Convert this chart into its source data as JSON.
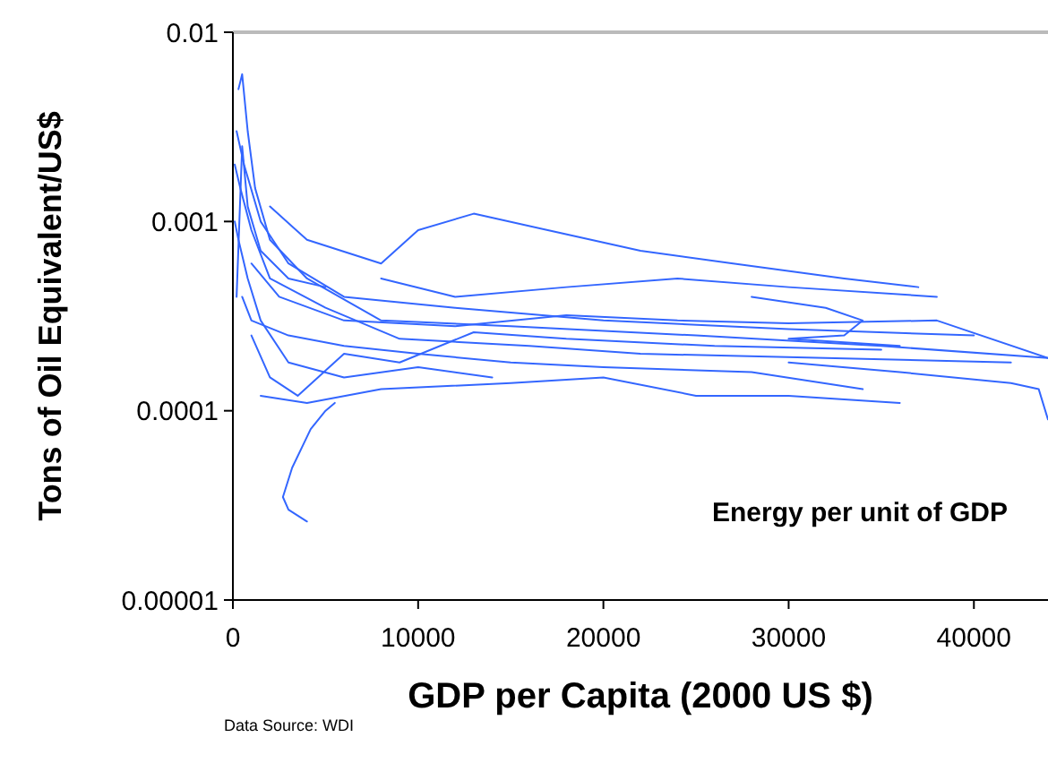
{
  "chart_data": {
    "type": "line",
    "xlabel": "GDP per Capita (2000 US $)",
    "ylabel": "Tons of Oil Equivalent/US$",
    "annotations": [
      "Energy per unit of GDP",
      "Data Source: WDI"
    ],
    "log": "y",
    "xlim": [
      0,
      44000
    ],
    "xticks": [
      0,
      10000,
      20000,
      30000,
      40000
    ],
    "ylim": [
      1e-05,
      0.01
    ],
    "yticks": [
      0.01,
      0.001,
      0.0001,
      {
        "value": 1e-05,
        "label": "0.00001"
      }
    ],
    "grid": false,
    "marker": "none",
    "line_style": "solid",
    "series": [
      {
        "color": "#3366ff",
        "x": [
          300,
          500,
          800,
          1200,
          2000,
          4000,
          8000,
          15000,
          25000,
          35000,
          44000
        ],
        "values": [
          0.005,
          0.006,
          0.003,
          0.0015,
          0.0008,
          0.0005,
          0.0003,
          0.00028,
          0.00025,
          0.00022,
          0.00019
        ]
      },
      {
        "color": "#3366ff",
        "x": [
          200,
          600,
          1500,
          3000,
          6000,
          12000,
          20000,
          30000,
          40000
        ],
        "values": [
          0.003,
          0.002,
          0.001,
          0.0006,
          0.0004,
          0.00035,
          0.0003,
          0.00027,
          0.00025
        ]
      },
      {
        "color": "#3366ff",
        "x": [
          2000,
          4000,
          8000,
          10000,
          13000,
          17000,
          22000,
          27000,
          33000,
          37000
        ],
        "values": [
          0.0012,
          0.0008,
          0.0006,
          0.0009,
          0.0011,
          0.0009,
          0.0007,
          0.0006,
          0.0005,
          0.00045
        ]
      },
      {
        "color": "#3366ff",
        "x": [
          5500,
          5000,
          4200,
          3200,
          2700,
          3000,
          4000
        ],
        "values": [
          0.00011,
          0.0001,
          8e-05,
          5e-05,
          3.5e-05,
          3e-05,
          2.6e-05
        ]
      },
      {
        "color": "#3366ff",
        "x": [
          1500,
          4000,
          8000,
          15000,
          20000,
          25000,
          30000,
          36000
        ],
        "values": [
          0.00012,
          0.00011,
          0.00013,
          0.00014,
          0.00015,
          0.00012,
          0.00012,
          0.00011
        ]
      },
      {
        "color": "#3366ff",
        "x": [
          500,
          1000,
          3000,
          6000,
          10000,
          15000,
          20000,
          28000,
          34000
        ],
        "values": [
          0.0004,
          0.0003,
          0.00025,
          0.00022,
          0.0002,
          0.00018,
          0.00017,
          0.00016,
          0.00013
        ]
      },
      {
        "color": "#3366ff",
        "x": [
          1000,
          2500,
          6000,
          12000,
          18000,
          24000,
          30000,
          38000,
          44000
        ],
        "values": [
          0.0006,
          0.0004,
          0.0003,
          0.00028,
          0.00032,
          0.0003,
          0.00029,
          0.0003,
          0.00019
        ]
      },
      {
        "color": "#3366ff",
        "x": [
          30000,
          36000,
          42000,
          43500,
          44000
        ],
        "values": [
          0.00018,
          0.00016,
          0.00014,
          0.00013,
          9e-05
        ]
      },
      {
        "color": "#3366ff",
        "x": [
          28000,
          32000,
          34000,
          33000,
          30000,
          36000
        ],
        "values": [
          0.0004,
          0.00035,
          0.0003,
          0.00025,
          0.00024,
          0.00022
        ]
      },
      {
        "color": "#3366ff",
        "x": [
          100,
          300,
          800,
          1500,
          3000,
          6000,
          10000,
          14000
        ],
        "values": [
          0.001,
          0.0008,
          0.0005,
          0.0003,
          0.00018,
          0.00015,
          0.00017,
          0.00015
        ]
      },
      {
        "color": "#3366ff",
        "x": [
          8000,
          12000,
          18000,
          24000,
          30000,
          38000
        ],
        "values": [
          0.0005,
          0.0004,
          0.00045,
          0.0005,
          0.00045,
          0.0004
        ]
      },
      {
        "color": "#3366ff",
        "x": [
          100,
          400,
          1000,
          2000,
          5000,
          9000,
          16000,
          22000,
          32000,
          42000
        ],
        "values": [
          0.002,
          0.0015,
          0.0009,
          0.0005,
          0.00035,
          0.00024,
          0.00022,
          0.0002,
          0.00019,
          0.00018
        ]
      },
      {
        "color": "#3366ff",
        "x": [
          200,
          500,
          800,
          1500,
          3000,
          5000
        ],
        "values": [
          0.0004,
          0.0025,
          0.0012,
          0.0007,
          0.0005,
          0.00045
        ]
      },
      {
        "color": "#3366ff",
        "x": [
          1000,
          2000,
          3500,
          6000,
          9000,
          13000,
          18000,
          26000,
          35000
        ],
        "values": [
          0.00025,
          0.00015,
          0.00012,
          0.0002,
          0.00018,
          0.00026,
          0.00024,
          0.00022,
          0.00021
        ]
      }
    ]
  }
}
